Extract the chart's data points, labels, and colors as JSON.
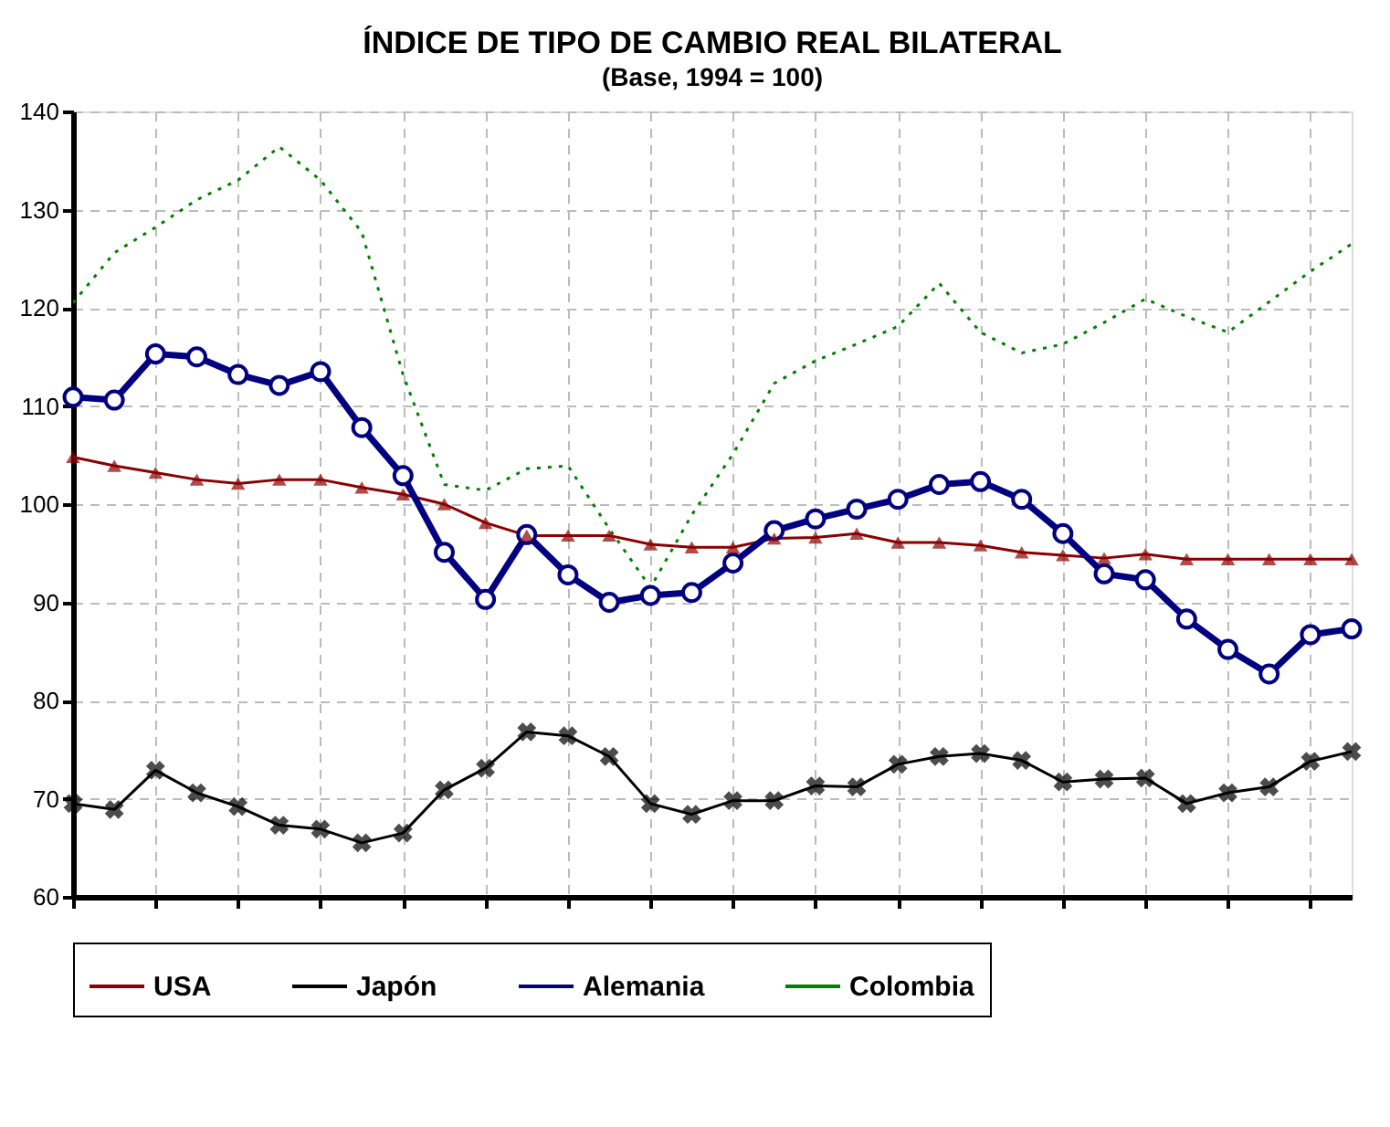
{
  "chart_data": {
    "type": "line",
    "title": "ÍNDICE DE TIPO DE CAMBIO REAL BILATERAL",
    "subtitle": "(Base, 1994 = 100)",
    "categories": [
      null,
      null,
      null,
      null,
      null,
      null,
      null,
      null,
      null,
      null,
      null,
      null,
      null,
      null,
      null,
      null,
      null,
      null,
      null,
      null,
      null,
      null,
      null,
      null,
      null,
      null,
      null,
      null,
      null,
      null,
      null,
      null
    ],
    "series": [
      {
        "name": "USA",
        "color": "#8b0000",
        "marker": "triangle",
        "line_style": "solid",
        "values": [
          104.8,
          103.9,
          103.2,
          102.5,
          102.1,
          102.5,
          102.5,
          101.7,
          101.0,
          100.0,
          98.1,
          96.8,
          96.8,
          96.8,
          95.9,
          95.6,
          95.6,
          96.5,
          96.6,
          97.0,
          96.1,
          96.1,
          95.8,
          95.1,
          94.8,
          94.5,
          94.9,
          94.4,
          94.4,
          94.4,
          94.4,
          94.4
        ]
      },
      {
        "name": "Japón",
        "color": "#000000",
        "marker": "cross",
        "line_style": "solid",
        "values": [
          69.5,
          68.9,
          72.9,
          70.6,
          69.2,
          67.3,
          66.9,
          65.5,
          66.5,
          70.9,
          73.1,
          76.8,
          76.4,
          74.3,
          69.5,
          68.4,
          69.8,
          69.8,
          71.3,
          71.2,
          73.5,
          74.3,
          74.6,
          73.9,
          71.7,
          72.0,
          72.1,
          69.5,
          70.6,
          71.2,
          73.8,
          74.8
        ]
      },
      {
        "name": "Alemania",
        "color": "#000080",
        "marker": "circle",
        "line_style": "solid",
        "values": [
          110.9,
          110.6,
          115.3,
          115.0,
          113.2,
          112.1,
          113.5,
          107.8,
          102.9,
          95.1,
          90.3,
          96.9,
          92.8,
          90.0,
          90.7,
          91.0,
          94.0,
          97.3,
          98.5,
          99.5,
          100.5,
          102.0,
          102.3,
          100.5,
          97.0,
          92.9,
          92.3,
          88.3,
          85.2,
          82.7,
          86.7,
          87.3
        ]
      },
      {
        "name": "Colombia",
        "color": "#008000",
        "marker": "none",
        "line_style": "dotted",
        "values": [
          120.5,
          125.6,
          128.2,
          131.0,
          133.0,
          136.4,
          133.0,
          127.7,
          113.2,
          102.0,
          101.4,
          103.6,
          103.9,
          97.5,
          91.5,
          98.9,
          105.1,
          112.3,
          114.6,
          116.3,
          118.1,
          122.5,
          117.5,
          115.4,
          116.3,
          118.5,
          120.9,
          119.1,
          117.5,
          120.6,
          123.7,
          126.5
        ]
      }
    ],
    "ylim": [
      60,
      140
    ],
    "yticks": [
      60,
      70,
      80,
      90,
      100,
      110,
      120,
      130,
      140
    ],
    "grid": true,
    "legend": "bottom",
    "tick_labels": "y"
  }
}
